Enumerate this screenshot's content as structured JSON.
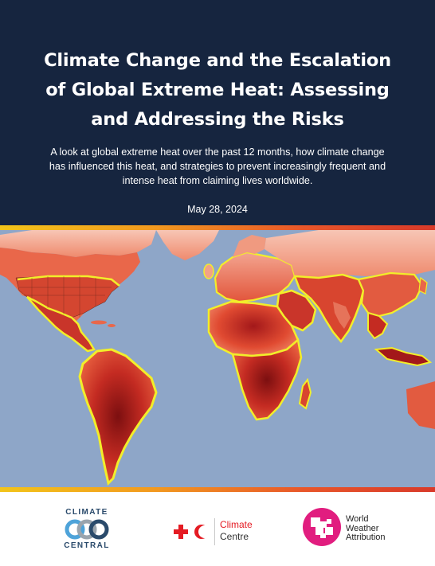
{
  "header": {
    "title_lines": [
      "Climate Change and the Escalation",
      "of Global Extreme Heat: Assessing",
      "and Addressing the Risks"
    ],
    "subtitle_lines": [
      "A look at global extreme heat over the past 12 months, how climate change",
      "has influenced this heat, and strategies to prevent increasingly frequent and",
      "intense heat from claiming lives worldwide."
    ],
    "date": "May 28, 2024"
  },
  "colors": {
    "header_bg": "#16253f",
    "ocean": "#8ea6c8",
    "heat_light": "#f7b7a3",
    "heat_mid": "#e4573d",
    "heat_dark": "#8e1414",
    "border_highlight": "#f2ee2a",
    "band_gradient": [
      "#f2c41a",
      "#e8562a",
      "#d83a2a"
    ]
  },
  "footer": {
    "climate_central": {
      "line1": "CLIMATE",
      "line2": "CENTRAL"
    },
    "climate_centre": {
      "line1": "Climate",
      "line2": "Centre",
      "icons": [
        "red-cross-icon",
        "red-crescent-icon"
      ]
    },
    "wwa": {
      "line1": "World",
      "line2": "Weather",
      "line3": "Attribution"
    }
  }
}
